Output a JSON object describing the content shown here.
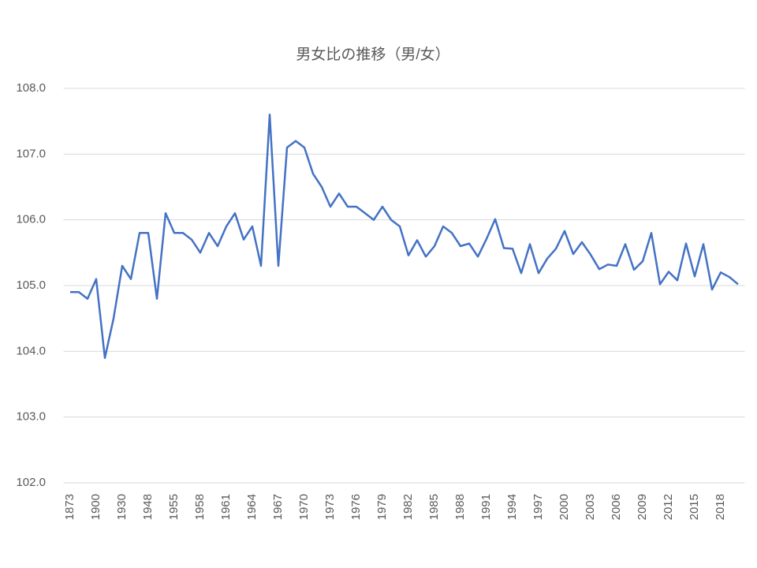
{
  "chart_data": {
    "type": "line",
    "title": "男女比の推移（男/女）",
    "categories": [
      "1873",
      null,
      null,
      "1900",
      null,
      null,
      "1930",
      null,
      null,
      "1948",
      null,
      null,
      "1955",
      null,
      null,
      "1958",
      null,
      null,
      "1961",
      null,
      null,
      "1964",
      null,
      null,
      "1967",
      null,
      null,
      "1970",
      null,
      null,
      "1973",
      null,
      null,
      "1976",
      null,
      null,
      "1979",
      null,
      null,
      "1982",
      null,
      null,
      "1985",
      null,
      null,
      "1988",
      null,
      null,
      "1991",
      null,
      null,
      "1994",
      null,
      null,
      "1997",
      null,
      null,
      "2000",
      null,
      null,
      "2003",
      null,
      null,
      "2006",
      null,
      null,
      "2009",
      null,
      null,
      "2012",
      null,
      null,
      "2015",
      null,
      null,
      "2018",
      null,
      null
    ],
    "series": [
      {
        "name": "男女比",
        "color": "#4472c4",
        "values": [
          104.9,
          104.9,
          104.8,
          105.1,
          103.9,
          104.5,
          105.3,
          105.1,
          105.8,
          105.8,
          104.8,
          106.1,
          105.8,
          105.8,
          105.7,
          105.5,
          105.8,
          105.6,
          105.9,
          106.1,
          105.7,
          105.9,
          105.3,
          107.6,
          105.3,
          107.1,
          107.2,
          107.1,
          106.7,
          106.5,
          106.2,
          106.4,
          106.2,
          106.2,
          106.1,
          106.0,
          106.2,
          106.0,
          105.9,
          105.46,
          105.69,
          105.44,
          105.6,
          105.9,
          105.8,
          105.6,
          105.64,
          105.44,
          105.71,
          106.01,
          105.57,
          105.56,
          105.19,
          105.63,
          105.19,
          105.41,
          105.56,
          105.83,
          105.48,
          105.66,
          105.47,
          105.25,
          105.32,
          105.3,
          105.63,
          105.24,
          105.37,
          105.8,
          105.02,
          105.21,
          105.08,
          105.64,
          105.14,
          105.63,
          104.94,
          105.2,
          105.13,
          105.02
        ]
      }
    ],
    "ylim": [
      102,
      108
    ],
    "yticks": [
      {
        "value": 102,
        "label": "102.0"
      },
      {
        "value": 103,
        "label": "103.0"
      },
      {
        "value": 104,
        "label": "104.0"
      },
      {
        "value": 105,
        "label": "105.0"
      },
      {
        "value": 106,
        "label": "106.0"
      },
      {
        "value": 107,
        "label": "107.0"
      },
      {
        "value": 108,
        "label": "108.0"
      }
    ],
    "grid": true
  }
}
